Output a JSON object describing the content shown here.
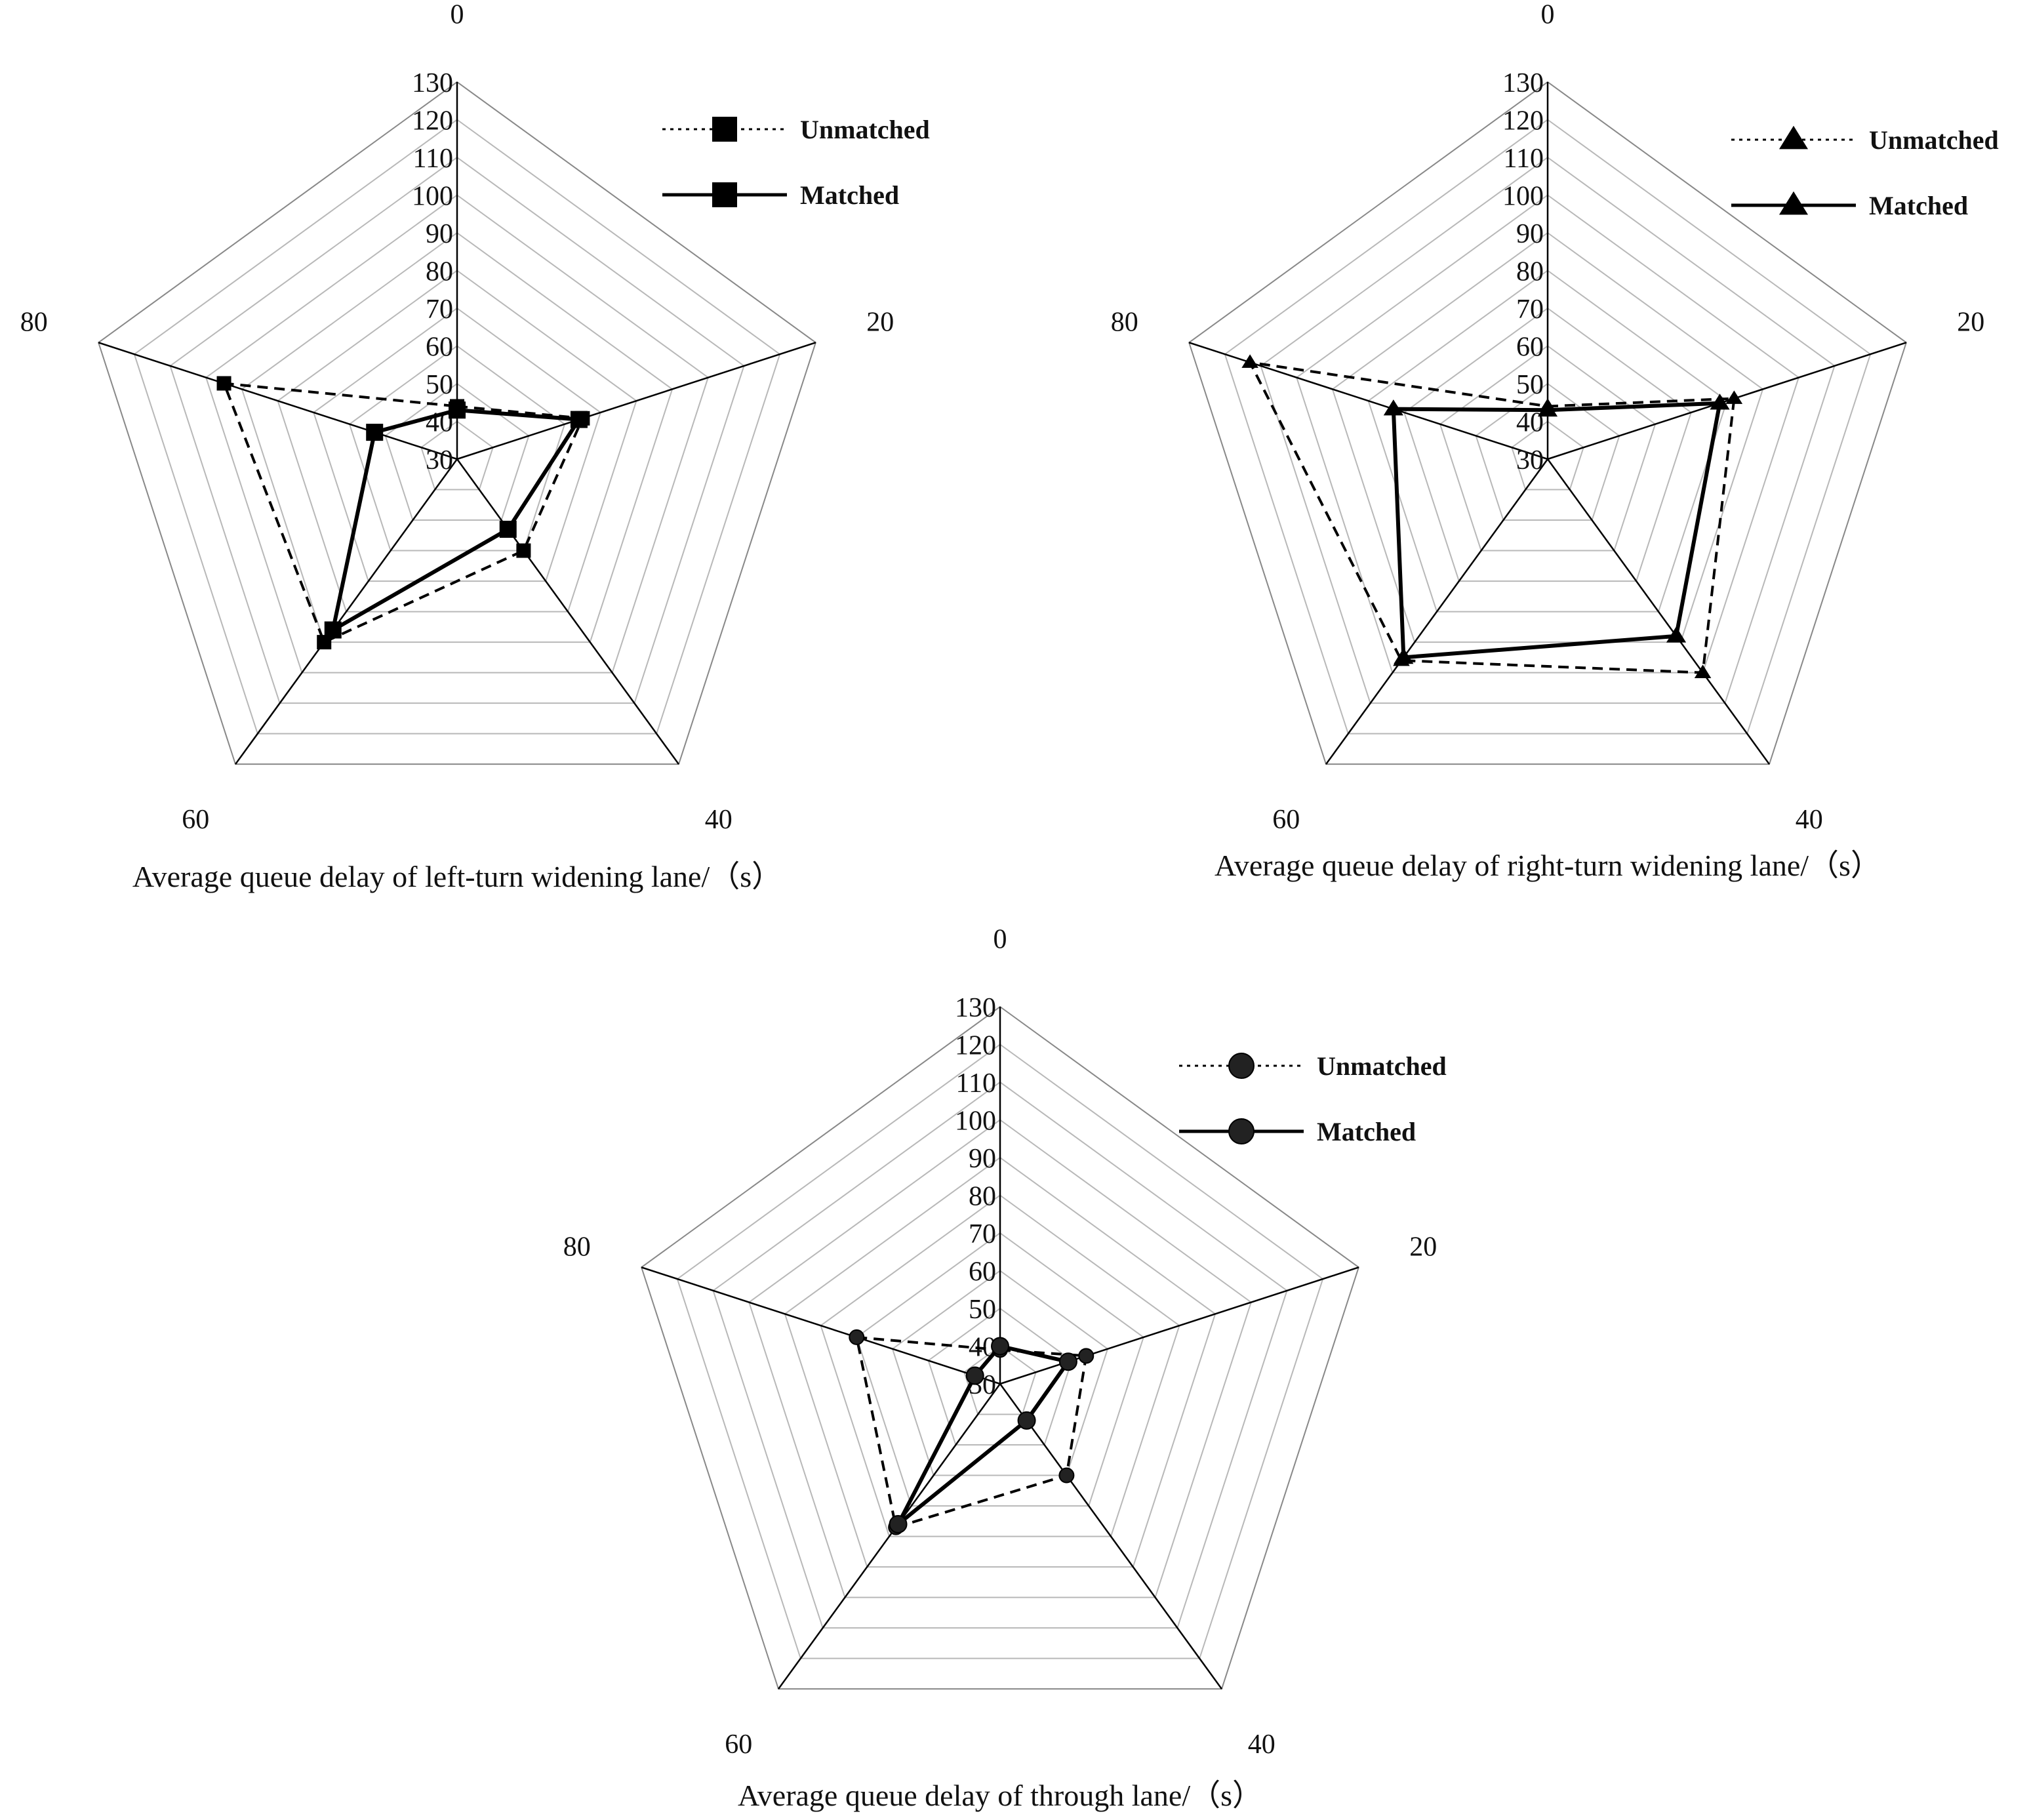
{
  "chart_data": [
    {
      "type": "radar",
      "title": "Average queue delay of left-turn widening lane/（s）",
      "categories": [
        "0",
        "20",
        "40",
        "60",
        "80"
      ],
      "rlim": [
        30,
        130
      ],
      "ticks": [
        30,
        40,
        50,
        60,
        70,
        80,
        90,
        100,
        110,
        120,
        130
      ],
      "marker": "square",
      "series": [
        {
          "name": "Unmatched",
          "style": "dashed",
          "values": [
            44,
            65,
            60,
            90,
            95
          ]
        },
        {
          "name": "Matched",
          "style": "solid",
          "values": [
            43,
            64,
            53,
            86,
            53
          ]
        }
      ]
    },
    {
      "type": "radar",
      "title": "Average queue delay of right-turn widening lane/（s）",
      "categories": [
        "0",
        "20",
        "40",
        "60",
        "80"
      ],
      "rlim": [
        30,
        130
      ],
      "ticks": [
        30,
        40,
        50,
        60,
        70,
        80,
        90,
        100,
        110,
        120,
        130
      ],
      "marker": "triangle",
      "series": [
        {
          "name": "Unmatched",
          "style": "dashed",
          "values": [
            44,
            82,
            100,
            96,
            113
          ]
        },
        {
          "name": "Matched",
          "style": "solid",
          "values": [
            43,
            78,
            88,
            95,
            73
          ]
        }
      ]
    },
    {
      "type": "radar",
      "title": "Average queue delay of through lane/（s）",
      "categories": [
        "0",
        "20",
        "40",
        "60",
        "80"
      ],
      "rlim": [
        30,
        130
      ],
      "ticks": [
        30,
        40,
        50,
        60,
        70,
        80,
        90,
        100,
        110,
        120,
        130
      ],
      "marker": "circle",
      "series": [
        {
          "name": "Unmatched",
          "style": "dashed",
          "values": [
            39,
            54,
            60,
            77,
            70
          ]
        },
        {
          "name": "Matched",
          "style": "solid",
          "values": [
            40,
            49,
            42,
            76,
            37
          ]
        }
      ]
    }
  ]
}
